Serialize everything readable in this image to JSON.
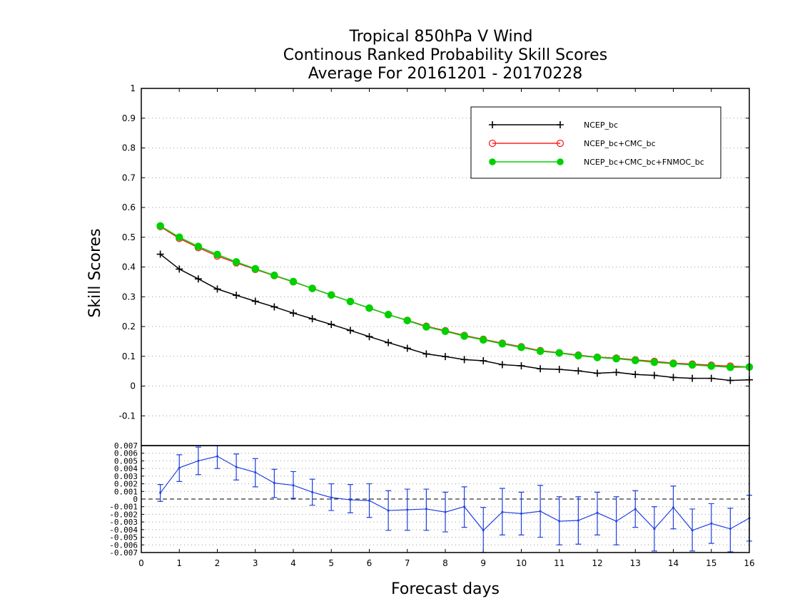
{
  "title": {
    "line1": "Tropical 850hPa V Wind",
    "line2": "Continous Ranked Probability Skill Scores",
    "line3": "Average For 20161201 - 20170228"
  },
  "chart_data": [
    {
      "type": "line",
      "ylabel": "Skill Scores",
      "xlim": [
        0,
        16
      ],
      "ylim": [
        -0.2,
        1
      ],
      "grid": true,
      "legend_placement": "top-right",
      "yticks": [
        "-0.1",
        "0",
        "0.1",
        "0.2",
        "0.3",
        "0.4",
        "0.5",
        "0.6",
        "0.7",
        "0.8",
        "0.9",
        "1"
      ],
      "x": [
        0.5,
        1,
        1.5,
        2,
        2.5,
        3,
        3.5,
        4,
        4.5,
        5,
        5.5,
        6,
        6.5,
        7,
        7.5,
        8,
        8.5,
        9,
        9.5,
        10,
        10.5,
        11,
        11.5,
        12,
        12.5,
        13,
        13.5,
        14,
        14.5,
        15,
        15.5,
        16
      ],
      "series": [
        {
          "name": "NCEP_bc",
          "color": "#000000",
          "marker": "plus",
          "values": [
            0.443,
            0.393,
            0.36,
            0.326,
            0.305,
            0.285,
            0.266,
            0.245,
            0.226,
            0.207,
            0.187,
            0.166,
            0.146,
            0.127,
            0.108,
            0.099,
            0.089,
            0.085,
            0.072,
            0.068,
            0.058,
            0.056,
            0.051,
            0.043,
            0.046,
            0.039,
            0.036,
            0.029,
            0.026,
            0.026,
            0.019,
            0.021
          ]
        },
        {
          "name": "NCEP_bc+CMC_bc",
          "color": "#ff2020",
          "marker": "open-circle",
          "values": [
            0.536,
            0.496,
            0.465,
            0.437,
            0.414,
            0.392,
            0.371,
            0.35,
            0.328,
            0.306,
            0.284,
            0.262,
            0.24,
            0.221,
            0.201,
            0.186,
            0.17,
            0.157,
            0.144,
            0.132,
            0.119,
            0.112,
            0.104,
            0.097,
            0.094,
            0.088,
            0.083,
            0.077,
            0.074,
            0.07,
            0.067,
            0.064
          ]
        },
        {
          "name": "NCEP_bc+CMC_bc+FNMOC_bc",
          "color": "#00d000",
          "marker": "filled-circle",
          "values": [
            0.538,
            0.5,
            0.469,
            0.442,
            0.417,
            0.394,
            0.372,
            0.351,
            0.328,
            0.306,
            0.284,
            0.262,
            0.24,
            0.22,
            0.199,
            0.184,
            0.168,
            0.155,
            0.142,
            0.13,
            0.117,
            0.111,
            0.102,
            0.096,
            0.092,
            0.086,
            0.08,
            0.075,
            0.071,
            0.067,
            0.063,
            0.064
          ]
        }
      ]
    },
    {
      "type": "line",
      "xlabel": "Forecast days",
      "xlim": [
        0,
        16
      ],
      "ylim": [
        -0.007,
        0.007
      ],
      "grid": true,
      "xticks": [
        "0",
        "1",
        "2",
        "3",
        "4",
        "5",
        "6",
        "7",
        "8",
        "9",
        "10",
        "11",
        "12",
        "13",
        "14",
        "15",
        "16"
      ],
      "yticks": [
        "-0.007",
        "-0.006",
        "-0.005",
        "-0.004",
        "-0.003",
        "-0.002",
        "-0.001",
        "0",
        "0.001",
        "0.002",
        "0.003",
        "0.004",
        "0.005",
        "0.006",
        "0.007"
      ],
      "x": [
        0.5,
        1,
        1.5,
        2,
        2.5,
        3,
        3.5,
        4,
        4.5,
        5,
        5.5,
        6,
        6.5,
        7,
        7.5,
        8,
        8.5,
        9,
        9.5,
        10,
        10.5,
        11,
        11.5,
        12,
        12.5,
        13,
        13.5,
        14,
        14.5,
        15,
        15.5,
        16
      ],
      "series": [
        {
          "color": "#2040e0",
          "values": [
            0.0008,
            0.0041,
            0.005,
            0.0056,
            0.0042,
            0.0035,
            0.0021,
            0.0018,
            0.0009,
            0.0002,
            -0.0001,
            -0.0002,
            -0.0015,
            -0.0014,
            -0.0013,
            -0.0017,
            -0.001,
            -0.0041,
            -0.0017,
            -0.0019,
            -0.0016,
            -0.0029,
            -0.0028,
            -0.0018,
            -0.0029,
            -0.0013,
            -0.0039,
            -0.0011,
            -0.0041,
            -0.0032,
            -0.0039,
            -0.0025
          ],
          "error_low": [
            -0.0003,
            0.0023,
            0.0032,
            0.004,
            0.0025,
            0.0016,
            0.0002,
            0.0001,
            -0.0008,
            -0.0015,
            -0.0018,
            -0.0024,
            -0.0041,
            -0.0041,
            -0.0041,
            -0.0043,
            -0.0037,
            -0.0071,
            -0.0047,
            -0.0047,
            -0.005,
            -0.006,
            -0.0059,
            -0.0047,
            -0.006,
            -0.0037,
            -0.0068,
            -0.0039,
            -0.0068,
            -0.0058,
            -0.0069,
            -0.0055
          ],
          "error_high": [
            0.0019,
            0.0058,
            0.0068,
            0.0073,
            0.0059,
            0.0053,
            0.0039,
            0.0036,
            0.0026,
            0.002,
            0.0019,
            0.002,
            0.0011,
            0.0013,
            0.0013,
            0.0009,
            0.0016,
            -0.0011,
            0.0014,
            0.0009,
            0.0018,
            0.0003,
            0.0003,
            0.0009,
            0.0003,
            0.0011,
            -0.001,
            0.0017,
            -0.0013,
            -0.0006,
            -0.0012,
            0.0005
          ]
        }
      ]
    }
  ]
}
